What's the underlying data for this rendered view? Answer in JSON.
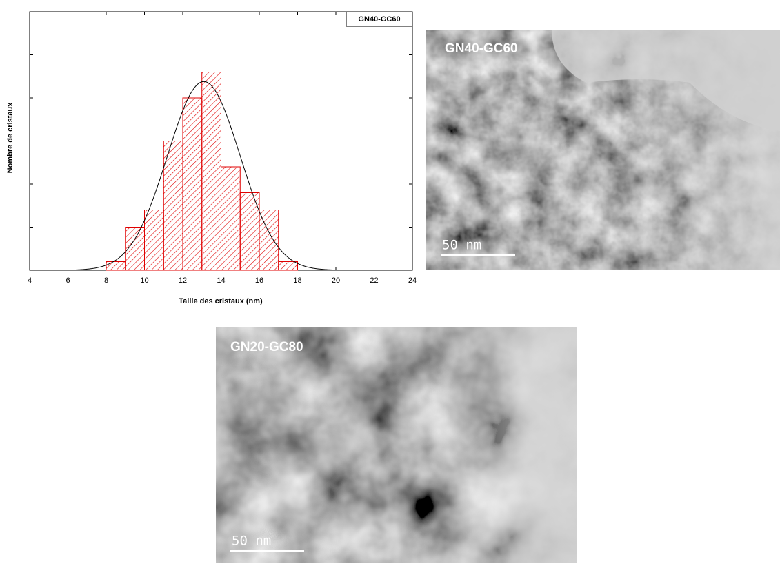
{
  "chart_data": {
    "type": "histogram",
    "x_label": "Taille des cristaux (nm)",
    "y_label": "Nombre de cristaux",
    "bins": [
      8,
      9,
      10,
      11,
      12,
      13,
      14,
      15,
      16,
      17,
      18
    ],
    "series": [
      {
        "name": "GN40-GC60",
        "color": "#e00000",
        "values": [
          1,
          5,
          7,
          15,
          20,
          23,
          12,
          9,
          7,
          1
        ]
      }
    ],
    "fit": {
      "mean": 13.1,
      "sigma": 1.9,
      "amplitude": 21.9,
      "color": "#000000"
    },
    "xlim": [
      4,
      24
    ],
    "xticks": [
      4,
      6,
      8,
      10,
      12,
      14,
      16,
      18,
      20,
      22,
      24
    ],
    "ylim": [
      0,
      30
    ],
    "yticks": [
      0,
      5,
      10,
      15,
      20,
      25,
      30
    ],
    "legend": "top-right"
  },
  "images": [
    {
      "label": "GN40-GC60",
      "scale_bar": "50 nm"
    },
    {
      "label": "GN20-GC80",
      "scale_bar": "50 nm"
    }
  ]
}
